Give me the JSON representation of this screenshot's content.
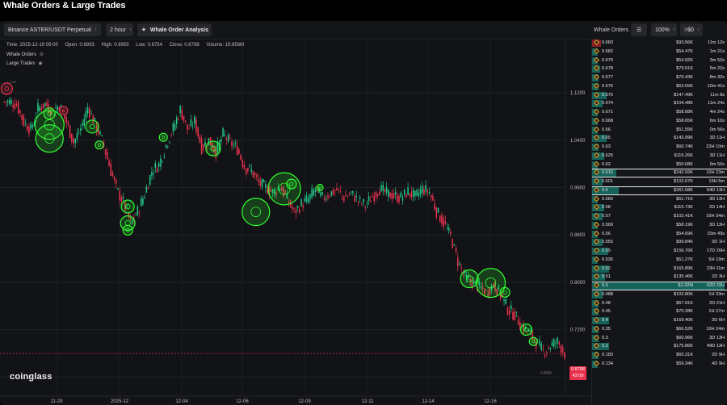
{
  "page": {
    "title": "Whale Orders & Large Trades"
  },
  "toolbar": {
    "symbol": "Binance ASTER/USDT Perpetual",
    "interval": "2 hour",
    "analysis_label": "Whale Order Analysis",
    "whale_orders_label": "Whale Orders",
    "zoom": "100%",
    "min_value": ">$0"
  },
  "ohlc": {
    "time": "Time: 2025-12-19 09:00",
    "open": "Open: 0.6893",
    "high": "High: 0.6955",
    "low": "Low: 0.6754",
    "close": "Close: 0.6798",
    "volume": "Volume: 19.656M"
  },
  "legend": {
    "whale_orders": "Whale Orders",
    "large_trades": "Large Trades",
    "top_value": "1.1369"
  },
  "watermark": "coinglass",
  "last_price": {
    "price": "0.6798",
    "countdown": "43:09"
  },
  "low_label": "0.6556",
  "colors": {
    "up": "#22c88a",
    "down": "#e8324e",
    "bubble": "#33ff33",
    "bar": "#15635a",
    "accent": "#e3a12a"
  },
  "chart_data": {
    "type": "candlestick",
    "x_ticks": [
      "11-29",
      "2025-12",
      "12-04",
      "12-06",
      "12-09",
      "12-11",
      "12-14",
      "12-16"
    ],
    "y_ticks": [
      "1.1200",
      "1.0400",
      "0.9600",
      "0.8800",
      "0.8000",
      "0.7200",
      "0.6400"
    ],
    "ylim": [
      0.624,
      1.172
    ],
    "closes": [
      1.105,
      1.1,
      1.07,
      1.058,
      1.094,
      1.101,
      1.088,
      1.1,
      1.07,
      1.036,
      1.06,
      1.095,
      1.068,
      1.04,
      0.998,
      0.958,
      0.935,
      0.9,
      0.92,
      0.95,
      0.988,
      0.999,
      1.032,
      1.06,
      1.092,
      1.058,
      1.072,
      1.028,
      1.04,
      1.02,
      1.05,
      1.036,
      1.025,
      0.995,
      0.988,
      0.968,
      0.96,
      0.952,
      0.962,
      0.94,
      0.918,
      0.932,
      0.94,
      0.958,
      0.942,
      0.95,
      0.956,
      0.943,
      0.95,
      0.938,
      0.93,
      0.945,
      0.958,
      0.95,
      0.946,
      0.943,
      0.953,
      0.944,
      0.958,
      0.952,
      0.92,
      0.9,
      0.877,
      0.835,
      0.808,
      0.8,
      0.791,
      0.782,
      0.797,
      0.779,
      0.755,
      0.745,
      0.725,
      0.715,
      0.7,
      0.682,
      0.693,
      0.7,
      0.68
    ],
    "bubbles": [
      {
        "i": 6,
        "v": 1.066,
        "r": 18
      },
      {
        "i": 6,
        "v": 1.043,
        "r": 17
      },
      {
        "i": 6,
        "v": 1.085,
        "r": 7
      },
      {
        "i": 12,
        "v": 1.063,
        "r": 8
      },
      {
        "i": 13,
        "v": 1.032,
        "r": 5
      },
      {
        "i": 17,
        "v": 0.928,
        "r": 8
      },
      {
        "i": 17,
        "v": 0.9,
        "r": 9
      },
      {
        "i": 17,
        "v": 0.888,
        "r": 6
      },
      {
        "i": 22,
        "v": 1.045,
        "r": 5
      },
      {
        "i": 29,
        "v": 1.026,
        "r": 9
      },
      {
        "i": 35,
        "v": 0.919,
        "r": 17
      },
      {
        "i": 39,
        "v": 0.958,
        "r": 20
      },
      {
        "i": 40,
        "v": 0.966,
        "r": 6
      },
      {
        "i": 44,
        "v": 0.96,
        "r": 4
      },
      {
        "i": 65,
        "v": 0.806,
        "r": 11
      },
      {
        "i": 68,
        "v": 0.799,
        "r": 18
      },
      {
        "i": 70,
        "v": 0.783,
        "r": 6
      },
      {
        "i": 73,
        "v": 0.72,
        "r": 7
      },
      {
        "i": 74,
        "v": 0.7,
        "r": 5
      },
      {
        "i": 0,
        "v": 1.127,
        "r": 7
      },
      {
        "i": 8,
        "v": 1.09,
        "r": 5
      }
    ]
  },
  "order_book": [
    {
      "price": "0.683",
      "amount": "$93.56K",
      "age": "11m 12s",
      "bar": 0.07
    },
    {
      "price": "0.682",
      "amount": "$54.47K",
      "age": "1m 21s",
      "bar": 0.04
    },
    {
      "price": "0.679",
      "amount": "$54.92K",
      "age": "3m 52s",
      "bar": 0.04
    },
    {
      "price": "0.678",
      "amount": "$79.51K",
      "age": "5m 22s",
      "bar": 0.06
    },
    {
      "price": "0.677",
      "amount": "$70.43K",
      "age": "8m 32s",
      "bar": 0.05
    },
    {
      "price": "0.676",
      "amount": "$63.55K",
      "age": "10m 41s",
      "bar": 0.05
    },
    {
      "price": "0.675",
      "amount": "$147.49K",
      "age": "11m 8s",
      "bar": 0.11
    },
    {
      "price": "0.674",
      "amount": "$104.48K",
      "age": "11m 24s",
      "bar": 0.08
    },
    {
      "price": "0.671",
      "amount": "$58.68K",
      "age": "4m 24s",
      "bar": 0.04
    },
    {
      "price": "0.668",
      "amount": "$58.65K",
      "age": "6m 10s",
      "bar": 0.04
    },
    {
      "price": "0.66",
      "amount": "$51.55K",
      "age": "0m 56s",
      "bar": 0.04
    },
    {
      "price": "0.65",
      "amount": "$143.99K",
      "age": "3D 11H",
      "bar": 0.11
    },
    {
      "price": "0.63",
      "amount": "$60.74K",
      "age": "23H 10m",
      "bar": 0.05
    },
    {
      "price": "0.625",
      "amount": "$116.26K",
      "age": "3D 11H",
      "bar": 0.09
    },
    {
      "price": "0.62",
      "amount": "$50.08K",
      "age": "9m 50s",
      "bar": 0.04
    },
    {
      "price": "0.615",
      "amount": "$242.92K",
      "age": "10H 23m",
      "bar": 0.18,
      "hl": true
    },
    {
      "price": "0.601",
      "amount": "$102.67K",
      "age": "15H 5m",
      "bar": 0.08
    },
    {
      "price": "0.6",
      "amount": "$261.58K",
      "age": "64D 13H",
      "bar": 0.2,
      "hl": true
    },
    {
      "price": "0.589",
      "amount": "$51.71K",
      "age": "3D 13H",
      "bar": 0.04
    },
    {
      "price": "0.58",
      "amount": "$115.73K",
      "age": "2D 14H",
      "bar": 0.09
    },
    {
      "price": "0.57",
      "amount": "$102.41K",
      "age": "16H 34m",
      "bar": 0.08
    },
    {
      "price": "0.569",
      "amount": "$58.19K",
      "age": "3D 13H",
      "bar": 0.04
    },
    {
      "price": "0.56",
      "amount": "$54.69K",
      "age": "33m 49s",
      "bar": 0.04
    },
    {
      "price": "0.555",
      "amount": "$99.84K",
      "age": "3D 1H",
      "bar": 0.08
    },
    {
      "price": "0.55",
      "amount": "$156.76K",
      "age": "17D 20H",
      "bar": 0.12
    },
    {
      "price": "0.535",
      "amount": "$51.27K",
      "age": "5H 19m",
      "bar": 0.04
    },
    {
      "price": "0.52",
      "amount": "$165.89K",
      "age": "23H 11m",
      "bar": 0.13
    },
    {
      "price": "0.51",
      "amount": "$135.46K",
      "age": "2D 3H",
      "bar": 0.1
    },
    {
      "price": "0.5",
      "amount": "$1.32M",
      "age": "62D 22H",
      "bar": 1.0,
      "hl": true
    },
    {
      "price": "0.488",
      "amount": "$102.80K",
      "age": "1H 33m",
      "bar": 0.08
    },
    {
      "price": "0.48",
      "amount": "$67.91K",
      "age": "2D 21H",
      "bar": 0.05
    },
    {
      "price": "0.45",
      "amount": "$70.28K",
      "age": "1H 27m",
      "bar": 0.05
    },
    {
      "price": "0.4",
      "amount": "$169.40K",
      "age": "3D 6H",
      "bar": 0.13
    },
    {
      "price": "0.35",
      "amount": "$66.52K",
      "age": "10H 24m",
      "bar": 0.05
    },
    {
      "price": "0.3",
      "amount": "$60.96K",
      "age": "3D 13H",
      "bar": 0.05
    },
    {
      "price": "0.2",
      "amount": "$175.86K",
      "age": "49D 13H",
      "bar": 0.13
    },
    {
      "price": "0.183",
      "amount": "$65.31K",
      "age": "2D 9H",
      "bar": 0.05
    },
    {
      "price": "0.134",
      "amount": "$59.34K",
      "age": "4D 9H",
      "bar": 0.04
    }
  ]
}
